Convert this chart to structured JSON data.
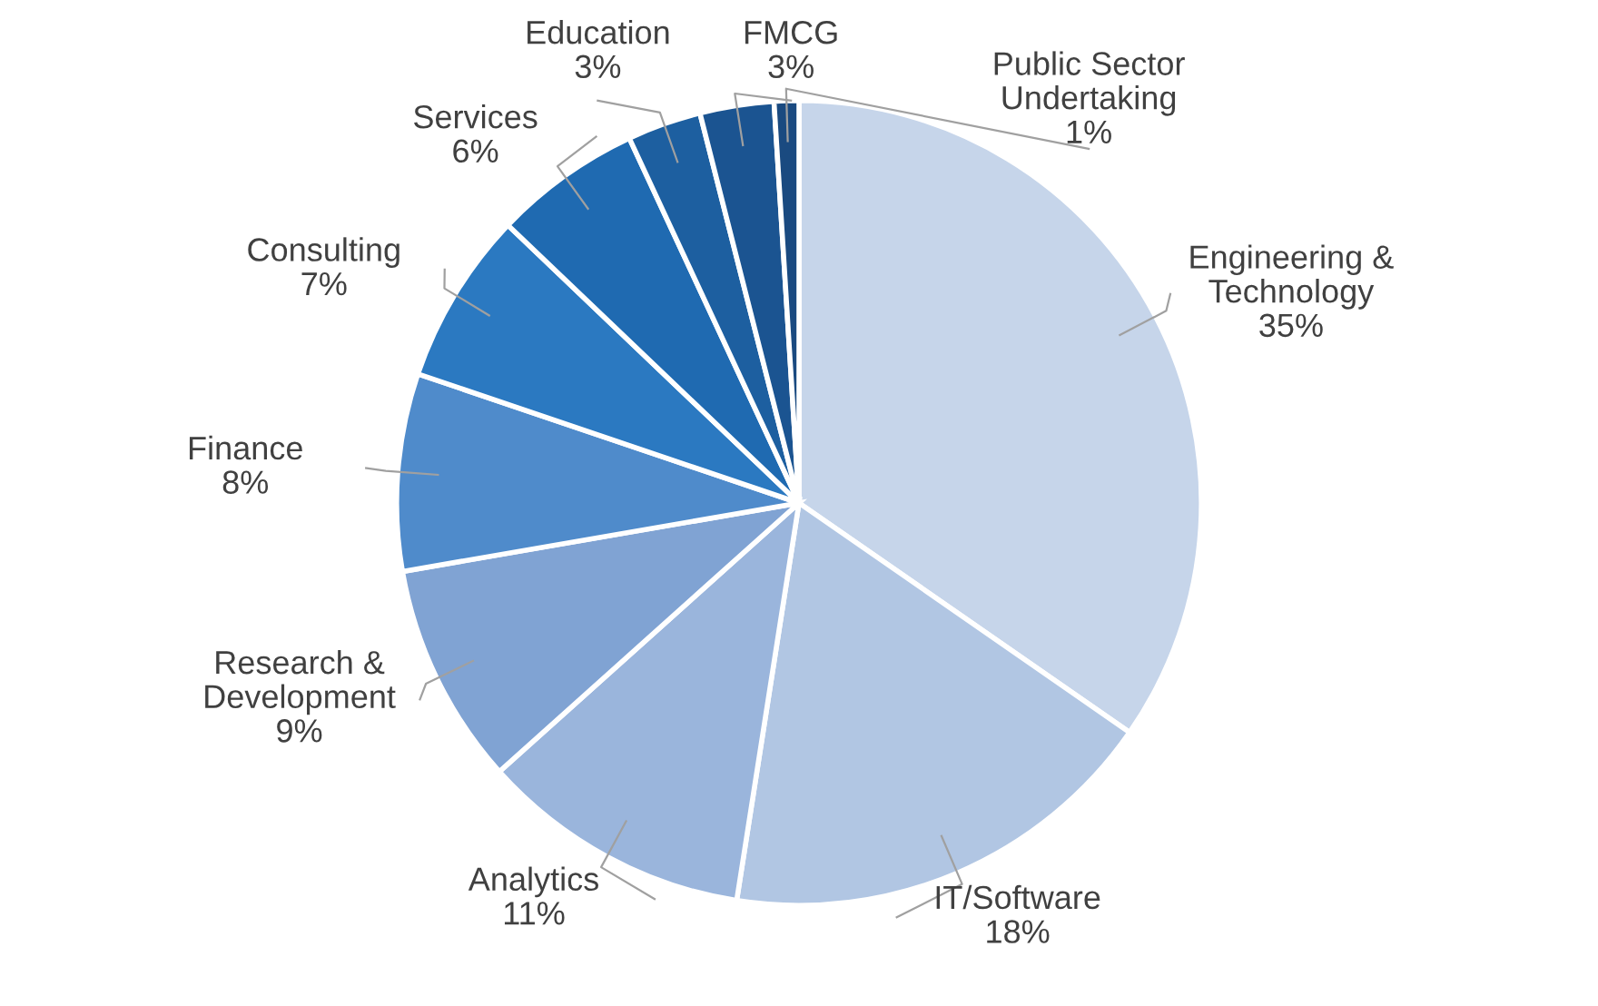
{
  "chart_data": {
    "type": "pie",
    "categories": [
      "Engineering &\nTechnology",
      "IT/Software",
      "Analytics",
      "Research &\nDevelopment",
      "Finance",
      "Consulting",
      "Services",
      "Education",
      "FMCG",
      "Public Sector\nUndertaking"
    ],
    "values": [
      35,
      18,
      11,
      9,
      8,
      7,
      6,
      3,
      3,
      1
    ],
    "colors": [
      "#c6d5ea",
      "#b1c6e3",
      "#9ab5dc",
      "#80a3d3",
      "#4f8bcb",
      "#2b79c1",
      "#1f6ab1",
      "#1d5fa0",
      "#1b5491",
      "#1a4a80"
    ],
    "value_labels": [
      "35%",
      "18%",
      "11%",
      "9%",
      "8%",
      "7%",
      "6%",
      "3%",
      "3%",
      "1%"
    ]
  }
}
